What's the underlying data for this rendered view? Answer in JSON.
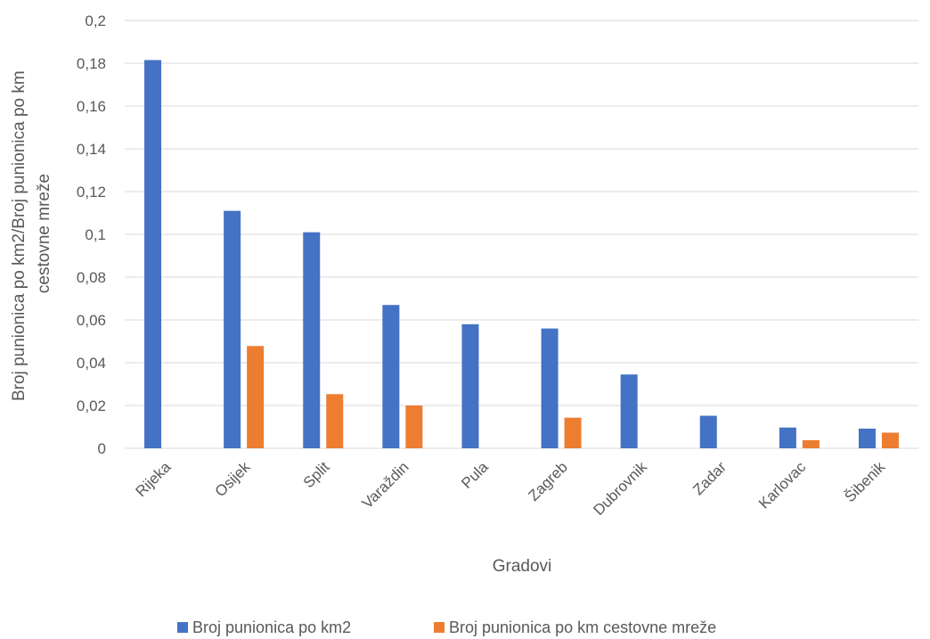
{
  "chart_data": {
    "type": "bar",
    "title": "",
    "xlabel": "Gradovi",
    "ylabel_lines": [
      "Broj punionica po km2/Broj punionica po km",
      "cestovne mreže"
    ],
    "ylim": [
      0,
      0.2
    ],
    "yticks": [
      0,
      0.02,
      0.04,
      0.06,
      0.08,
      0.1,
      0.12,
      0.14,
      0.16,
      0.18,
      0.2
    ],
    "ytick_labels": [
      "0",
      "0,02",
      "0,04",
      "0,06",
      "0,08",
      "0,1",
      "0,12",
      "0,14",
      "0,16",
      "0,18",
      "0,2"
    ],
    "grid": true,
    "legend_position": "bottom",
    "categories": [
      "Rijeka",
      "Osijek",
      "Split",
      "Varaždin",
      "Pula",
      "Zagreb",
      "Dubrovnik",
      "Zadar",
      "Karlovac",
      "Šibenik"
    ],
    "series": [
      {
        "name": "Broj punionica po km2",
        "color": "#4472C4",
        "values": [
          0.1815,
          0.111,
          0.101,
          0.067,
          0.058,
          0.056,
          0.0345,
          0.0152,
          0.0097,
          0.0092
        ]
      },
      {
        "name": "Broj punionica po km cestovne mreže",
        "color": "#ED7D31",
        "values": [
          0,
          0.0478,
          0.0253,
          0.02,
          0,
          0.0143,
          0,
          0,
          0.0038,
          0.0073
        ]
      }
    ]
  }
}
